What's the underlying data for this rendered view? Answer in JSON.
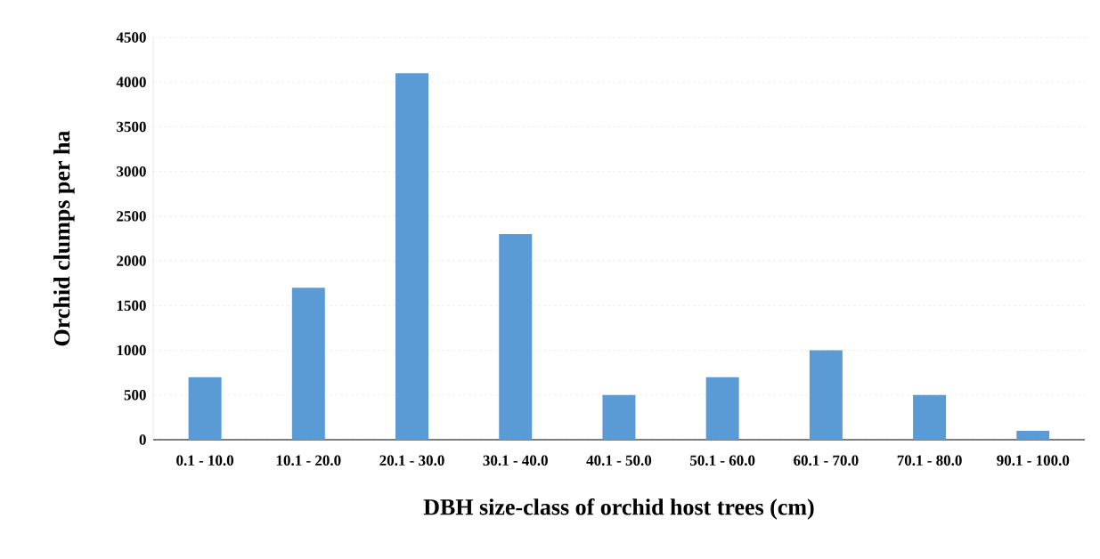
{
  "chart_data": {
    "type": "bar",
    "xlabel": "DBH size-class of orchid host trees (cm)",
    "ylabel": "Orchid clumps per ha",
    "categories": [
      "0.1 - 10.0",
      "10.1 - 20.0",
      "20.1 - 30.0",
      "30.1 - 40.0",
      "40.1 - 50.0",
      "50.1 - 60.0",
      "60.1 - 70.0",
      "70.1 - 80.0",
      "90.1 - 100.0"
    ],
    "values": [
      700,
      1700,
      4100,
      2300,
      500,
      700,
      1000,
      500,
      100
    ],
    "color": "#5b9bd5",
    "ylim": [
      0,
      4500
    ],
    "yticks": [
      0,
      500,
      1000,
      1500,
      2000,
      2500,
      3000,
      3500,
      4000,
      4500
    ],
    "grid": "y"
  }
}
